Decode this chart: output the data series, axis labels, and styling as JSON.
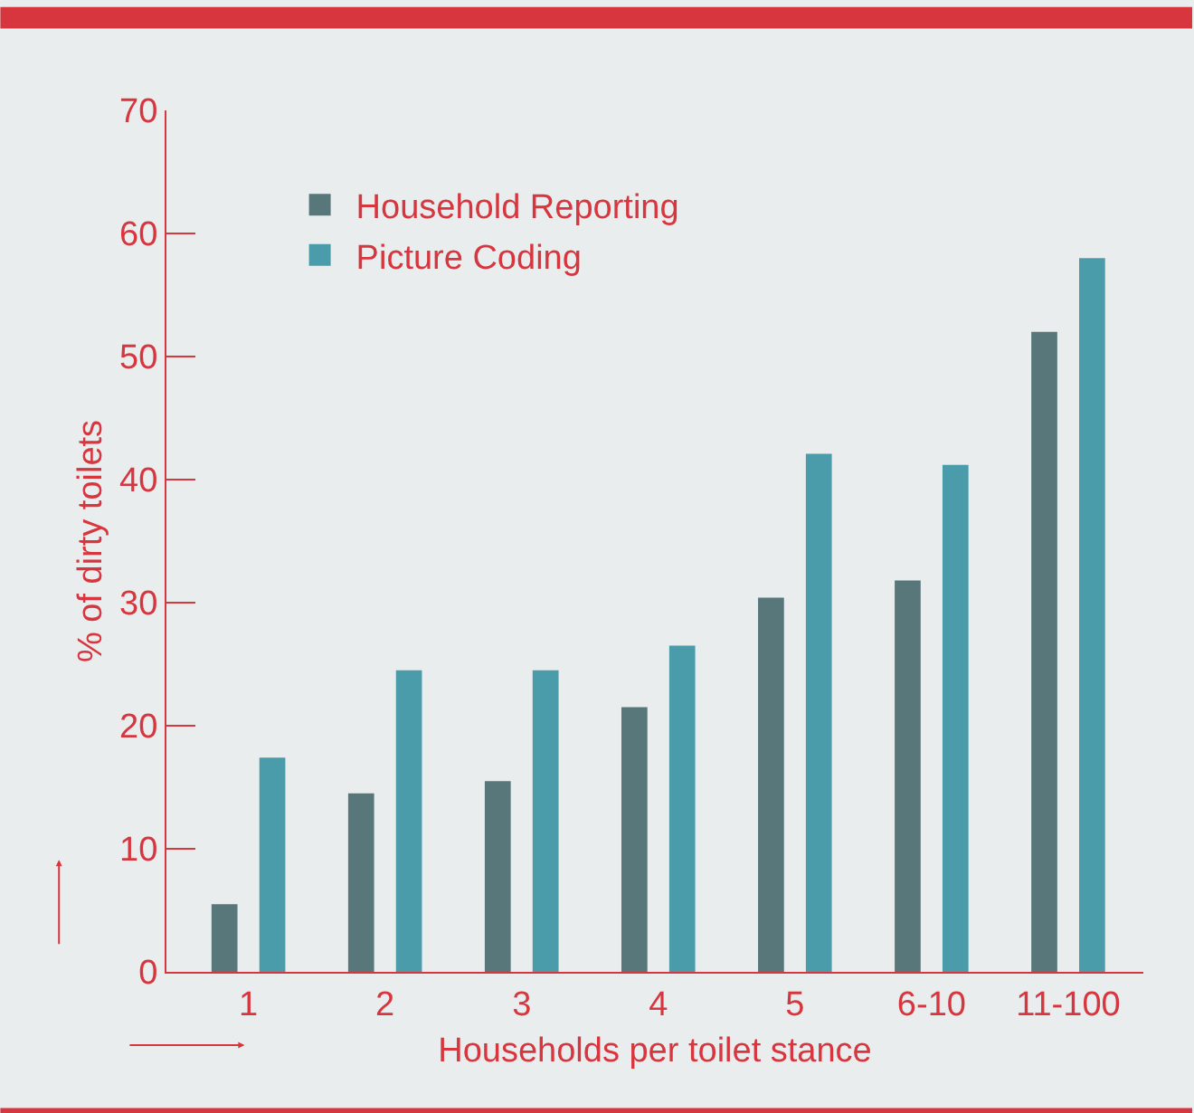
{
  "chart_data": {
    "type": "bar",
    "xlabel": "Households per toilet stance",
    "ylabel": "% of dirty toilets",
    "categories": [
      "1",
      "2",
      "3",
      "4",
      "5",
      "6-10",
      "11-100"
    ],
    "series": [
      {
        "name": "Household Reporting",
        "color": "#58777a",
        "values": [
          5.5,
          14.5,
          15.5,
          21.5,
          30.4,
          31.8,
          52.0
        ]
      },
      {
        "name": "Picture Coding",
        "color": "#4b9caa",
        "values": [
          17.4,
          24.5,
          24.5,
          26.5,
          42.1,
          41.2,
          58.0
        ]
      }
    ],
    "ylim": [
      0,
      70
    ],
    "yticks": [
      0,
      10,
      20,
      30,
      40,
      50,
      60,
      70
    ],
    "grid": false,
    "legend": "top left"
  }
}
